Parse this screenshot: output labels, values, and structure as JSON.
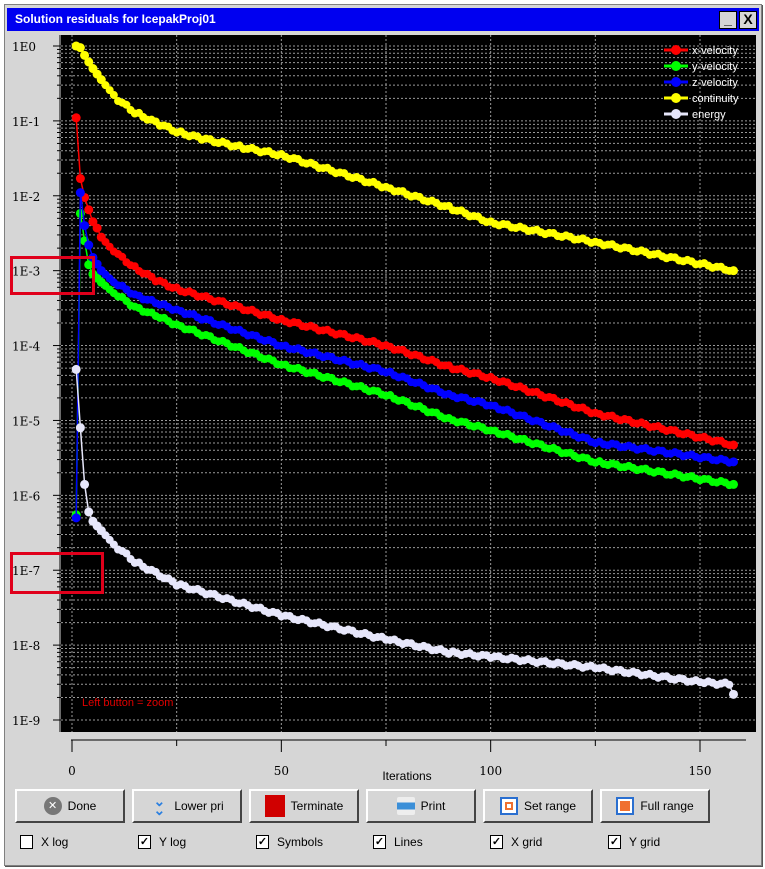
{
  "window": {
    "title": "Solution residuals for IcepakProj01",
    "minimize": "_",
    "close": "X"
  },
  "chart_data": {
    "type": "line",
    "xlabel": "Iterations",
    "ylabel": "",
    "xlim": [
      -2,
      163
    ],
    "ylim": [
      1e-09,
      1.6
    ],
    "y_scale": "log",
    "x_ticks": [
      0,
      50,
      100,
      150
    ],
    "y_ticks": [
      "1E0",
      "1E-1",
      "1E-2",
      "1E-3",
      "1E-4",
      "1E-5",
      "1E-6",
      "1E-7",
      "1E-8",
      "1E-9"
    ],
    "grid": true,
    "legend_position": "top-right",
    "annotation": "Left button = zoom",
    "last_iteration": 158,
    "series": [
      {
        "name": "x-velocity",
        "color": "#ff0000",
        "points": [
          [
            1,
            0.11
          ],
          [
            2,
            0.017
          ],
          [
            3,
            0.0095
          ],
          [
            4,
            0.0065
          ],
          [
            5,
            0.0045
          ],
          [
            6,
            0.0037
          ],
          [
            7,
            0.0028
          ],
          [
            10,
            0.0018
          ],
          [
            15,
            0.0011
          ],
          [
            20,
            0.00075
          ],
          [
            25,
            0.00057
          ],
          [
            50,
            0.00022
          ],
          [
            75,
            0.0001
          ],
          [
            90,
            5.2e-05
          ],
          [
            100,
            3.7e-05
          ],
          [
            125,
            1.25e-05
          ],
          [
            158,
            4.7e-06
          ]
        ]
      },
      {
        "name": "y-velocity",
        "color": "#00ff00",
        "points": [
          [
            1,
            5.5e-07
          ],
          [
            2,
            0.0058
          ],
          [
            3,
            0.0025
          ],
          [
            4,
            0.0012
          ],
          [
            5,
            0.0009
          ],
          [
            7,
            0.0007
          ],
          [
            10,
            0.0005
          ],
          [
            15,
            0.00033
          ],
          [
            20,
            0.00025
          ],
          [
            25,
            0.00019
          ],
          [
            50,
            5.6e-05
          ],
          [
            75,
            2.2e-05
          ],
          [
            90,
            1.05e-05
          ],
          [
            100,
            7.4e-06
          ],
          [
            125,
            2.8e-06
          ],
          [
            158,
            1.4e-06
          ]
        ]
      },
      {
        "name": "z-velocity",
        "color": "#0000ff",
        "points": [
          [
            1,
            5e-07
          ],
          [
            2,
            0.011
          ],
          [
            3,
            0.004
          ],
          [
            4,
            0.0022
          ],
          [
            5,
            0.0015
          ],
          [
            7,
            0.001
          ],
          [
            10,
            0.0007
          ],
          [
            15,
            0.00048
          ],
          [
            20,
            0.00037
          ],
          [
            25,
            0.0003
          ],
          [
            50,
            0.0001
          ],
          [
            75,
            4.5e-05
          ],
          [
            90,
            2.2e-05
          ],
          [
            100,
            1.6e-05
          ],
          [
            125,
            5.1e-06
          ],
          [
            158,
            2.8e-06
          ]
        ]
      },
      {
        "name": "continuity",
        "color": "#ffff00",
        "points": [
          [
            1,
            1.0
          ],
          [
            2,
            0.95
          ],
          [
            3,
            0.75
          ],
          [
            5,
            0.5
          ],
          [
            8,
            0.3
          ],
          [
            11,
            0.19
          ],
          [
            15,
            0.13
          ],
          [
            20,
            0.095
          ],
          [
            25,
            0.072
          ],
          [
            30,
            0.06
          ],
          [
            40,
            0.045
          ],
          [
            50,
            0.035
          ],
          [
            75,
            0.013
          ],
          [
            90,
            0.007
          ],
          [
            100,
            0.0044
          ],
          [
            125,
            0.0024
          ],
          [
            158,
            0.001
          ]
        ]
      },
      {
        "name": "energy",
        "color": "#e6e6fa",
        "points": [
          [
            1,
            4.8e-05
          ],
          [
            2,
            8e-06
          ],
          [
            3,
            1.4e-06
          ],
          [
            4,
            6e-07
          ],
          [
            5,
            4.5e-07
          ],
          [
            10,
            2.2e-07
          ],
          [
            15,
            1.3e-07
          ],
          [
            25,
            6.5e-08
          ],
          [
            50,
            2.5e-08
          ],
          [
            75,
            1.2e-08
          ],
          [
            90,
            8e-09
          ],
          [
            100,
            7e-09
          ],
          [
            125,
            5e-09
          ],
          [
            150,
            3.2e-09
          ],
          [
            157,
            3e-09
          ],
          [
            158,
            2.2e-09
          ]
        ]
      }
    ]
  },
  "buttons": [
    {
      "label": "Done",
      "icon": "close-circle-icon"
    },
    {
      "label": "Lower pri",
      "icon": "double-chevron-down-icon"
    },
    {
      "label": "Terminate",
      "icon": "stop-square-icon"
    },
    {
      "label": "Print",
      "icon": "printer-icon"
    },
    {
      "label": "Set range",
      "icon": "set-range-icon"
    },
    {
      "label": "Full range",
      "icon": "full-range-icon"
    }
  ],
  "checkboxes": [
    {
      "label": "X log",
      "checked": false
    },
    {
      "label": "Y log",
      "checked": true
    },
    {
      "label": "Symbols",
      "checked": true
    },
    {
      "label": "Lines",
      "checked": true
    },
    {
      "label": "X grid",
      "checked": true
    },
    {
      "label": "Y grid",
      "checked": true
    }
  ]
}
